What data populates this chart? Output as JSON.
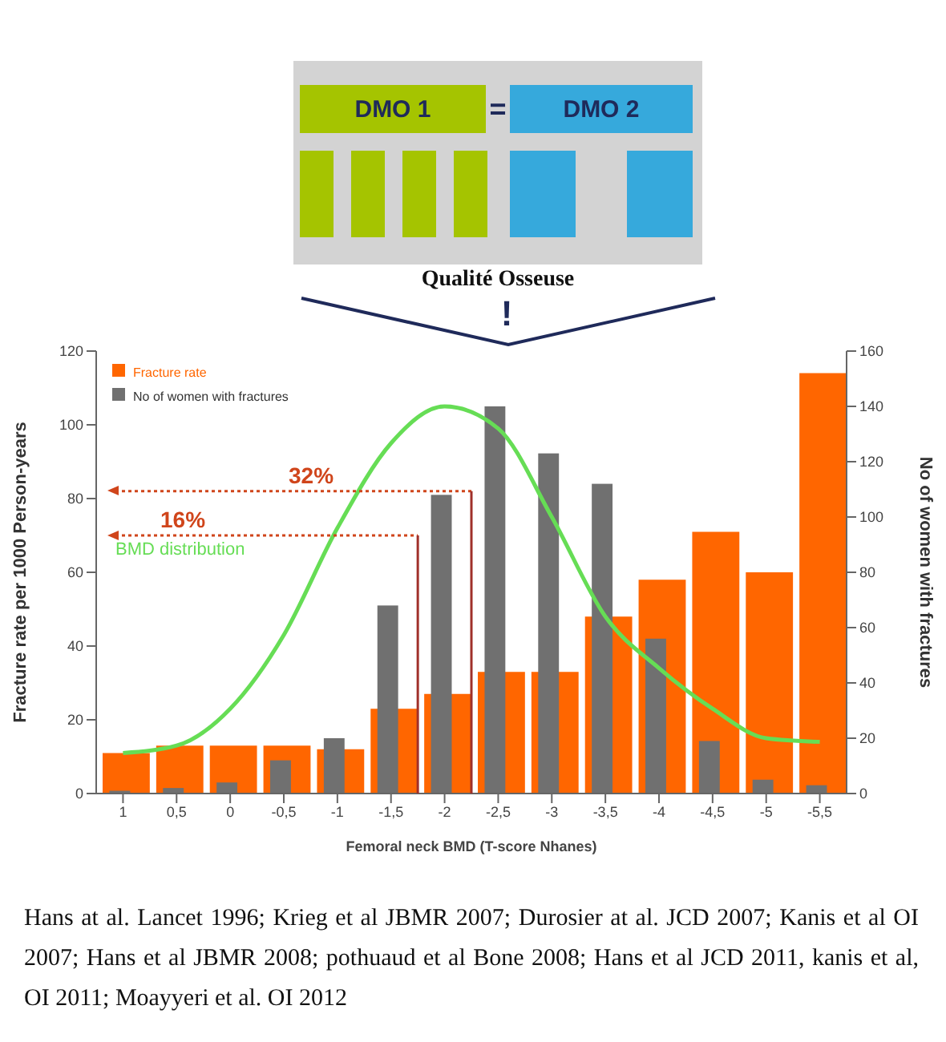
{
  "chart_data": {
    "type": "bar",
    "xlabel": "Femoral neck BMD (T-score Nhanes)",
    "ylabel": "Fracture rate per 1000 Person-years",
    "y2label": "No of women with fractures",
    "x": [
      1,
      0.5,
      0,
      -0.5,
      -1,
      -1.5,
      -2,
      -2.5,
      -3,
      -3.5,
      -4,
      -4.5,
      -5,
      -5.5
    ],
    "xlim": [
      1.25,
      -5.75
    ],
    "xticks": [
      1,
      {
        "value": 0.5,
        "label": "0,5"
      },
      0,
      {
        "value": -0.5,
        "label": "-0,5"
      },
      -1,
      {
        "value": -1.5,
        "label": "-1,5"
      },
      -2,
      {
        "value": -2.5,
        "label": "-2,5"
      },
      -3,
      {
        "value": -3.5,
        "label": "-3,5"
      },
      -4,
      {
        "value": -4.5,
        "label": "-4,5"
      },
      -5,
      {
        "value": -5.5,
        "label": "-5,5"
      }
    ],
    "series": [
      {
        "name": "Fracture rate",
        "color": "#ff6600",
        "values": [
          11,
          13,
          13,
          13,
          12,
          23,
          27,
          33,
          33,
          48,
          58,
          71,
          60,
          114
        ]
      },
      {
        "name": "No of women with fractures",
        "type": "bar",
        "axis": "y2",
        "color": "#707070",
        "values": [
          1,
          2,
          4,
          12,
          20,
          68,
          108,
          140,
          123,
          112,
          56,
          19,
          5,
          3
        ]
      },
      {
        "name": "BMD distribution",
        "type": "line",
        "color": "#66dd55",
        "values": [
          11,
          13,
          23,
          43,
          72,
          95,
          105,
          99,
          75,
          48,
          34,
          23,
          15,
          14
        ]
      }
    ],
    "ylim": [
      0,
      120
    ],
    "yticks": [
      0,
      20,
      40,
      60,
      80,
      100,
      120
    ],
    "y2lim": [
      0,
      160
    ],
    "y2ticks": [
      0,
      20,
      40,
      60,
      80,
      100,
      120,
      140,
      160
    ],
    "grid": false,
    "legend": "top left",
    "ref_lines": [
      {
        "axis": "y",
        "value": 70,
        "color": "#d0451b",
        "line_style": "dotted"
      },
      {
        "axis": "y",
        "value": 82,
        "color": "#d0451b",
        "line_style": "dotted"
      },
      {
        "axis": "x",
        "value": -1.75,
        "color": "#a0302a"
      },
      {
        "axis": "x",
        "value": -2.25,
        "color": "#a0302a"
      }
    ],
    "annotations": [
      "DMO 1",
      "=",
      "DMO 2",
      "Qualité Osseuse",
      "!",
      "16%",
      "32%",
      "Hans at al. Lancet 1996; Krieg et al JBMR 2007; Durosier at al. JCD 2007; Kanis et al OI 2007; Hans et al JBMR 2008; pothuaud et al Bone 2008; Hans et al JCD 2011, kanis et al, OI 2011; Moayyeri et al. OI 2012"
    ]
  }
}
